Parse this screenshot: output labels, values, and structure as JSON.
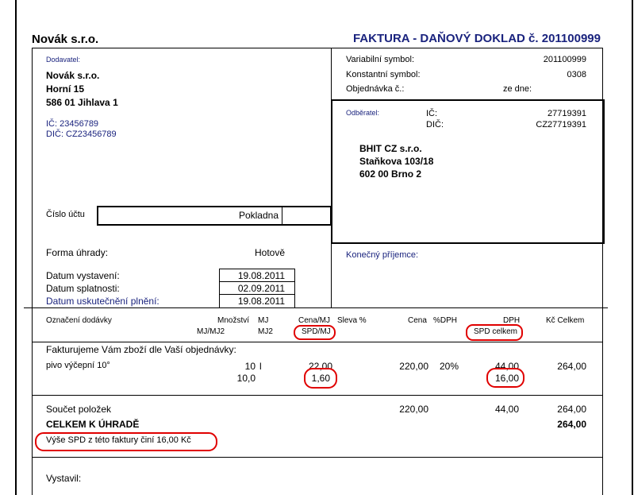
{
  "header": {
    "company": "Novák s.r.o.",
    "doc_title": "FAKTURA - DAŇOVÝ DOKLAD č. 201100999"
  },
  "supplier": {
    "label": "Dodavatel:",
    "name": "Novák s.r.o.",
    "street": "Horní 15",
    "city": "586 01 Jihlava 1",
    "ic": "IČ: 23456789",
    "dic": "DIČ: CZ23456789"
  },
  "symbols": {
    "variable_label": "Variabilní symbol:",
    "variable_value": "201100999",
    "constant_label": "Konstantní symbol:",
    "constant_value": "0308",
    "order_label": "Objednávka č.:",
    "date_label": "ze dne:"
  },
  "customer": {
    "label": "Odběratel:",
    "ic_label": "IČ:",
    "ic_value": "27719391",
    "dic_label": "DIČ:",
    "dic_value": "CZ27719391",
    "name": "BHIT CZ s.r.o.",
    "street": "Staňkova 103/18",
    "city": "602 00 Brno 2"
  },
  "account": {
    "label": "Číslo účtu",
    "value": "Pokladna"
  },
  "payment": {
    "label": "Forma úhrady:",
    "value": "Hotově"
  },
  "dates": {
    "issued_label": "Datum vystavení:",
    "issued_value": "19.08.2011",
    "due_label": "Datum splatnosti:",
    "due_value": "02.09.2011",
    "taxable_label": "Datum uskutečnění plnění:",
    "taxable_value": "19.08.2011"
  },
  "final_recipient_label": "Konečný příjemce:",
  "columns": {
    "item": "Označení dodávky",
    "qty": "Množství",
    "mj": "MJ",
    "mj_mj2": "MJ/MJ2",
    "mj2": "MJ2",
    "price_mj": "Cena/MJ",
    "spd_mj": "SPD/MJ",
    "discount": "Sleva %",
    "price": "Cena",
    "vat_pct": "%DPH",
    "vat": "DPH",
    "spd_total": "SPD celkem",
    "total": "Kč Celkem"
  },
  "intro_text": "Fakturujeme Vám zboží dle Vaší objednávky:",
  "items": [
    {
      "name": "pivo výčepní 10°",
      "qty": "10",
      "mj": "l",
      "price_mj": "22,00",
      "price": "220,00",
      "vat_pct": "20%",
      "vat": "44,00",
      "total": "264,00",
      "qty2": "10,0",
      "spd_mj": "1,60",
      "spd_total": "16,00"
    }
  ],
  "summary": {
    "sum_label": "Součet položek",
    "sum_price": "220,00",
    "sum_vat": "44,00",
    "sum_total": "264,00",
    "grand_label": "CELKEM K ÚHRADĚ",
    "grand_total": "264,00",
    "spd_note": "Výše SPD z této faktury činí 16,00 Kč"
  },
  "issued_by_label": "Vystavil:",
  "colors": {
    "navy": "#1a237e",
    "highlight": "#e00000"
  }
}
